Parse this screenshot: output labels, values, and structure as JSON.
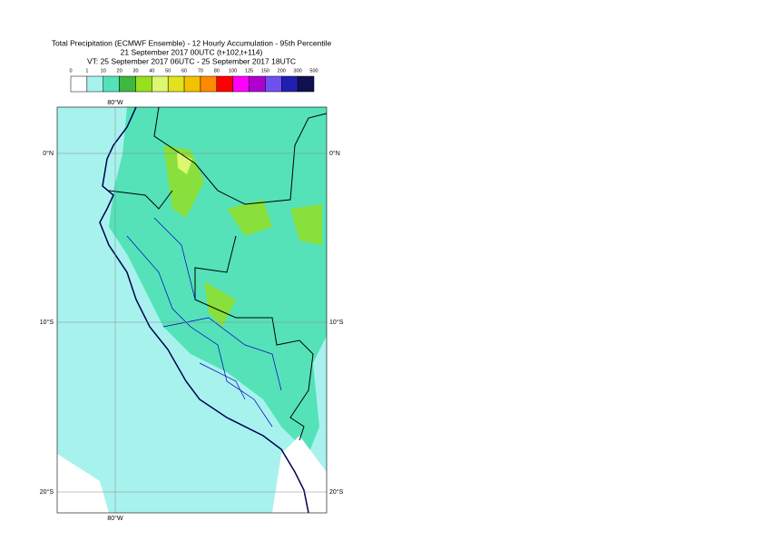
{
  "header": {
    "title_lines": [
      "Total Precipitation (ECMWF Ensemble) - 12 Hourly Accumulation - 95th Percentile",
      "21 September 2017 00UTC (t+102,t+114)",
      "VT: 25 September 2017 06UTC - 25 September 2017 18UTC"
    ]
  },
  "colorbar": {
    "labels": [
      "0",
      "1",
      "10",
      "20",
      "30",
      "40",
      "50",
      "60",
      "70",
      "80",
      "100",
      "125",
      "150",
      "200",
      "300",
      "500"
    ],
    "colors": [
      "#ffffff",
      "#a8f2ee",
      "#55e2b8",
      "#3eb83e",
      "#96e01e",
      "#dcf870",
      "#e2e21e",
      "#f2c200",
      "#ff8a00",
      "#ff0000",
      "#ff00ff",
      "#b000d0",
      "#7050f0",
      "#2020b0",
      "#101050"
    ]
  },
  "map": {
    "lat_labels": [
      "0°N",
      "10°S",
      "20°S"
    ],
    "lon_labels": [
      "80°W"
    ]
  }
}
